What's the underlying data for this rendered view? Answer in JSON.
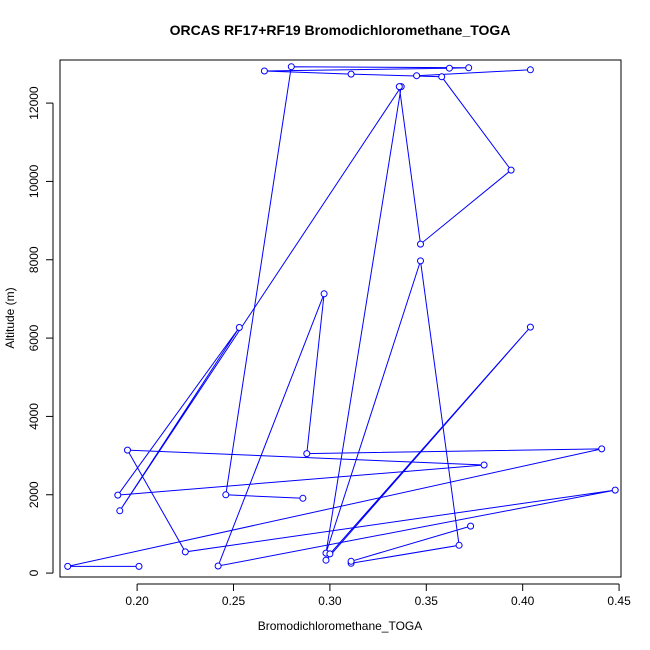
{
  "chart_data": {
    "type": "line",
    "title": "ORCAS RF17+RF19 Bromodichloromethane_TOGA",
    "xlabel": "Bromodichloromethane_TOGA",
    "ylabel": "Altitude (m)",
    "xlim": [
      0.16,
      0.451
    ],
    "ylim": [
      -100,
      13100
    ],
    "xticks": [
      0.2,
      0.25,
      0.3,
      0.35,
      0.4,
      0.45
    ],
    "xtick_labels": [
      "0.20",
      "0.25",
      "0.30",
      "0.35",
      "0.40",
      "0.45"
    ],
    "yticks": [
      0,
      2000,
      4000,
      6000,
      8000,
      10000,
      12000
    ],
    "ytick_labels": [
      "0",
      "2000",
      "4000",
      "6000",
      "8000",
      "10000",
      "12000"
    ],
    "grid": false,
    "series_color": "#0000ff",
    "marker": "open-circle",
    "series": [
      {
        "points": [
          [
            0.311,
            250
          ],
          [
            0.367,
            710
          ],
          [
            0.347,
            7970
          ],
          [
            0.298,
            510
          ],
          [
            0.337,
            12420
          ],
          [
            0.191,
            1590
          ],
          [
            0.253,
            6270
          ],
          [
            0.19,
            1990
          ],
          [
            0.38,
            2760
          ],
          [
            0.195,
            3140
          ],
          [
            0.225,
            540
          ],
          [
            0.448,
            2120
          ],
          [
            0.242,
            180
          ],
          [
            0.297,
            7130
          ],
          [
            0.288,
            3050
          ],
          [
            0.441,
            3170
          ],
          [
            0.164,
            170
          ],
          [
            0.201,
            170
          ]
        ]
      },
      {
        "points": [
          [
            0.286,
            1910
          ],
          [
            0.246,
            2000
          ],
          [
            0.28,
            12930
          ],
          [
            0.372,
            12900
          ],
          [
            0.362,
            12890
          ],
          [
            0.266,
            12820
          ],
          [
            0.311,
            12740
          ],
          [
            0.358,
            12670
          ],
          [
            0.394,
            10290
          ],
          [
            0.347,
            8400
          ],
          [
            0.336,
            12420
          ]
        ]
      },
      {
        "points": [
          [
            0.298,
            330
          ],
          [
            0.404,
            6280
          ],
          [
            0.3,
            490
          ]
        ]
      },
      {
        "points": [
          [
            0.373,
            1200
          ],
          [
            0.311,
            300
          ]
        ]
      },
      {
        "points": [
          [
            0.404,
            12850
          ],
          [
            0.345,
            12700
          ]
        ]
      }
    ]
  }
}
